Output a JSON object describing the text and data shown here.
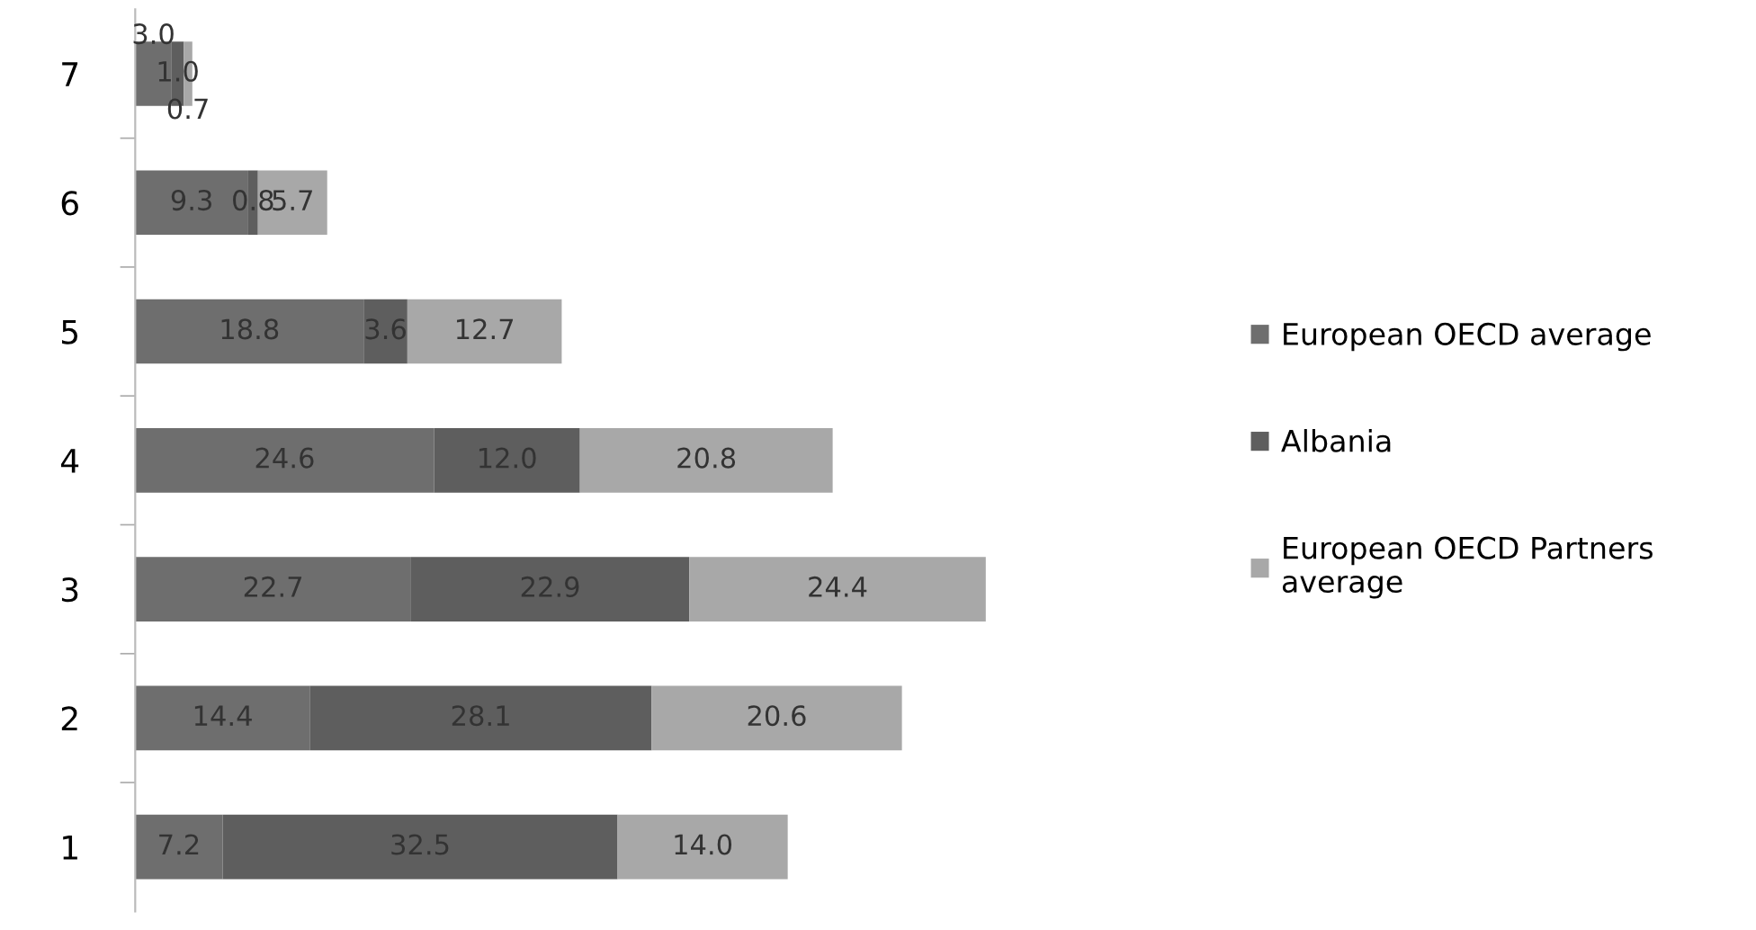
{
  "chart_data": {
    "type": "bar",
    "orientation": "horizontal",
    "stacked": true,
    "categories": [
      "7",
      "6",
      "5",
      "4",
      "3",
      "2",
      "1"
    ],
    "series": [
      {
        "name": "European OECD average",
        "color": "#6e6e6e",
        "values": [
          3.0,
          9.3,
          18.8,
          24.6,
          22.7,
          14.4,
          7.2
        ],
        "value_labels": [
          "3.0",
          "9.3",
          "18.8",
          "24.6",
          "22.7",
          "14.4",
          "7.2"
        ]
      },
      {
        "name": "Albania",
        "color": "#5e5e5e",
        "values": [
          1.0,
          0.8,
          3.6,
          12.0,
          22.9,
          28.1,
          32.5
        ],
        "value_labels": [
          "1.0",
          "0.8",
          "3.6",
          "12.0",
          "22.9",
          "28.1",
          "32.5"
        ]
      },
      {
        "name": "European OECD Partners\naverage",
        "color": "#a8a8a8",
        "values": [
          0.7,
          5.7,
          12.7,
          20.8,
          24.4,
          20.6,
          14.0
        ],
        "value_labels": [
          "0.7",
          "5.7",
          "12.7",
          "20.8",
          "24.4",
          "20.6",
          "14.0"
        ]
      }
    ],
    "legend": "right",
    "tick_labels": "y",
    "grid": false
  }
}
